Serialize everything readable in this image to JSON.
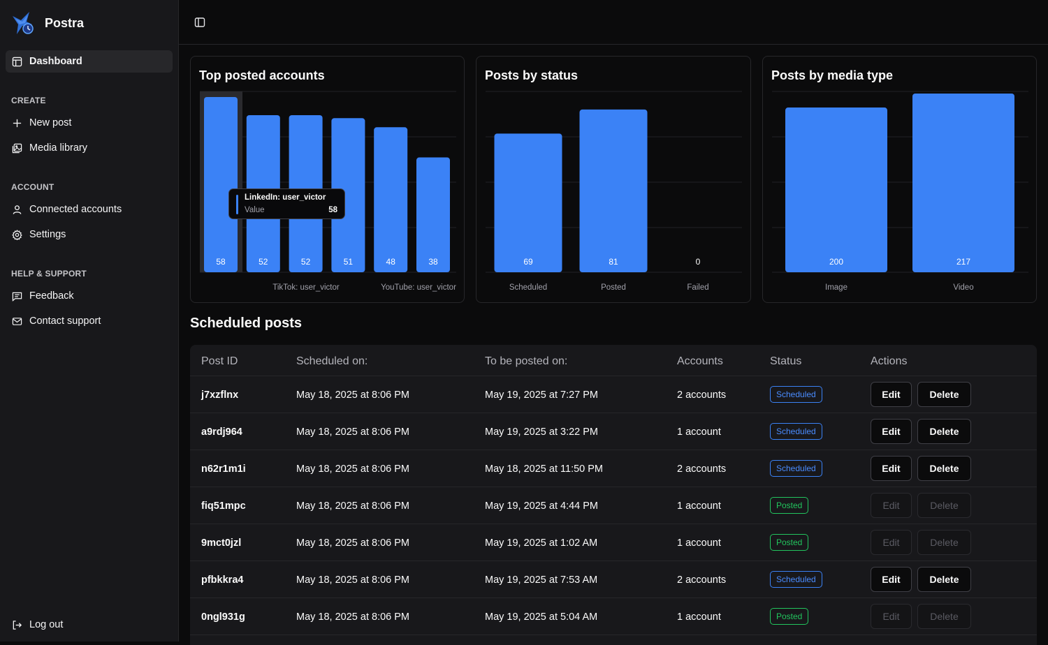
{
  "app": {
    "name": "Postra"
  },
  "sidebar": {
    "dashboard": "Dashboard",
    "sections": {
      "create": "CREATE",
      "account": "ACCOUNT",
      "help": "HELP & SUPPORT"
    },
    "items": {
      "new_post": "New post",
      "media_library": "Media library",
      "connected_accounts": "Connected accounts",
      "settings": "Settings",
      "feedback": "Feedback",
      "contact_support": "Contact support",
      "log_out": "Log out"
    }
  },
  "colors": {
    "accent": "#3b82f6",
    "scheduled": "#3b82f6",
    "posted": "#22c55e"
  },
  "chart_data": [
    {
      "type": "bar",
      "title": "Top posted accounts",
      "values": [
        58,
        52,
        52,
        51,
        48,
        38
      ],
      "visible_tick_labels": [
        "TikTok: user_victor",
        "YouTube: user_victor"
      ],
      "tooltip": {
        "label": "LinkedIn: user_victor",
        "name": "Value",
        "value": "58"
      },
      "grid": true
    },
    {
      "type": "bar",
      "title": "Posts by status",
      "categories": [
        "Scheduled",
        "Posted",
        "Failed"
      ],
      "values": [
        69,
        81,
        0
      ],
      "ylim": [
        0,
        90
      ],
      "grid": true
    },
    {
      "type": "bar",
      "title": "Posts by media type",
      "categories": [
        "Image",
        "Video"
      ],
      "values": [
        200,
        217
      ],
      "ylim": [
        0,
        217
      ],
      "grid": true
    }
  ],
  "scheduled": {
    "title": "Scheduled posts",
    "headers": [
      "Post ID",
      "Scheduled on:",
      "To be posted on:",
      "Accounts",
      "Status",
      "Actions"
    ],
    "edit_label": "Edit",
    "delete_label": "Delete",
    "rows": [
      {
        "id": "j7xzflnx",
        "scheduled_on": "May 18, 2025 at 8:06 PM",
        "post_on": "May 19, 2025 at 7:27 PM",
        "accounts": "2 accounts",
        "status": "Scheduled"
      },
      {
        "id": "a9rdj964",
        "scheduled_on": "May 18, 2025 at 8:06 PM",
        "post_on": "May 19, 2025 at 3:22 PM",
        "accounts": "1 account",
        "status": "Scheduled"
      },
      {
        "id": "n62r1m1i",
        "scheduled_on": "May 18, 2025 at 8:06 PM",
        "post_on": "May 18, 2025 at 11:50 PM",
        "accounts": "2 accounts",
        "status": "Scheduled"
      },
      {
        "id": "fiq51mpc",
        "scheduled_on": "May 18, 2025 at 8:06 PM",
        "post_on": "May 19, 2025 at 4:44 PM",
        "accounts": "1 account",
        "status": "Posted"
      },
      {
        "id": "9mct0jzl",
        "scheduled_on": "May 18, 2025 at 8:06 PM",
        "post_on": "May 19, 2025 at 1:02 AM",
        "accounts": "1 account",
        "status": "Posted"
      },
      {
        "id": "pfbkkra4",
        "scheduled_on": "May 18, 2025 at 8:06 PM",
        "post_on": "May 19, 2025 at 7:53 AM",
        "accounts": "2 accounts",
        "status": "Scheduled"
      },
      {
        "id": "0ngl931g",
        "scheduled_on": "May 18, 2025 at 8:06 PM",
        "post_on": "May 19, 2025 at 5:04 AM",
        "accounts": "1 account",
        "status": "Posted"
      }
    ]
  }
}
